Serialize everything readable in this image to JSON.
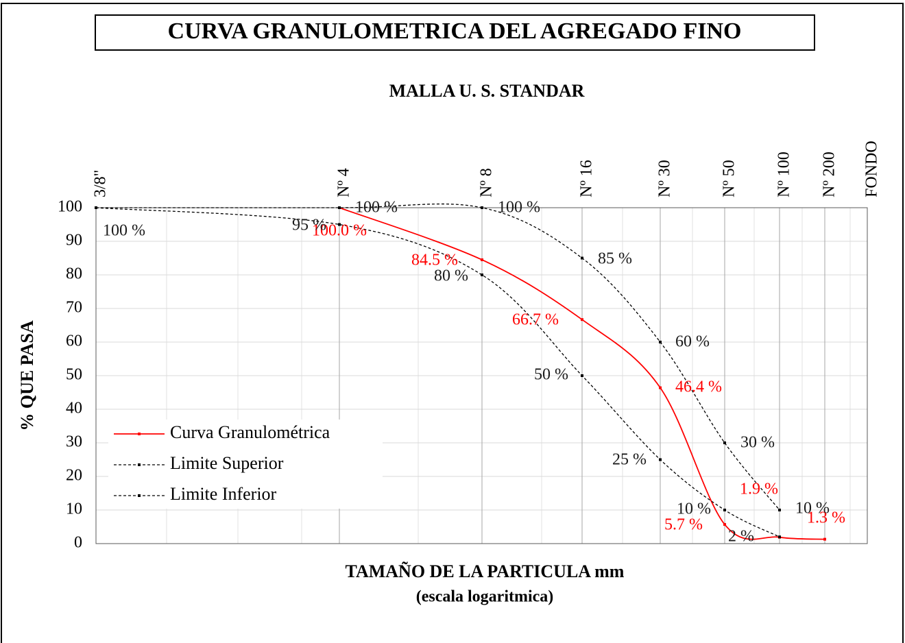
{
  "chart_data": {
    "type": "line",
    "title": "CURVA GRANULOMETRICA DEL AGREGADO FINO",
    "top_axis_title": "MALLA U. S. STANDAR",
    "ylabel": "% QUE PASA",
    "xlabel": "TAMAÑO DE LA PARTICULA mm",
    "xlabel_note": "(escala logaritmica)",
    "categories": [
      "3/8\"",
      "Nº 4",
      "Nº 8",
      "Nº 16",
      "Nº 30",
      "Nº 50",
      "Nº 100",
      "Nº 200",
      "FONDO"
    ],
    "series": [
      {
        "name": "Curva Granulométrica",
        "color": "#ff0000",
        "line_style": "solid",
        "values": [
          null,
          100.0,
          84.5,
          66.7,
          46.4,
          5.7,
          1.9,
          1.3,
          null
        ],
        "value_labels": [
          null,
          "100.0 %",
          "84.5 %",
          "66.7 %",
          "46.4 %",
          "5.7 %",
          "1.9 %",
          "1.3 %",
          null
        ]
      },
      {
        "name": "Limite Superior",
        "color": "#000000",
        "line_style": "dashed",
        "values": [
          100,
          100,
          100,
          85,
          60,
          30,
          10,
          null,
          null
        ],
        "value_labels": [
          "100 %",
          "100 %",
          "100 %",
          "85 %",
          "60 %",
          "30 %",
          "10 %",
          null,
          null
        ]
      },
      {
        "name": "Limite Inferior",
        "color": "#000000",
        "line_style": "dashed",
        "values": [
          100,
          95,
          80,
          50,
          25,
          10,
          2,
          null,
          null
        ],
        "value_labels": [
          null,
          "95 %",
          "80 %",
          "50 %",
          "25 %",
          "10 %",
          "2 %",
          null,
          null
        ]
      }
    ],
    "ylim": [
      0,
      100
    ],
    "yticks": [
      0,
      10,
      20,
      30,
      40,
      50,
      60,
      70,
      80,
      90,
      100
    ],
    "grid": true,
    "legend_position": "left"
  }
}
